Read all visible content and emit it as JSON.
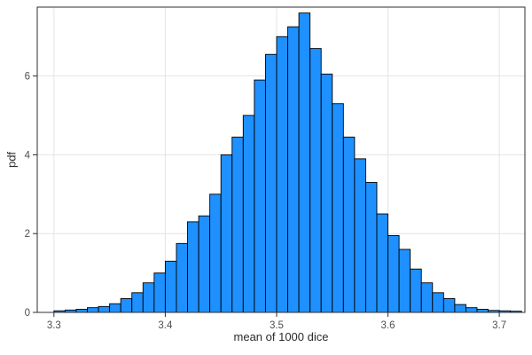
{
  "chart_data": {
    "type": "bar",
    "subtype": "histogram",
    "title": "",
    "xlabel": "mean of 1000 dice",
    "ylabel": "pdf",
    "bin_start": 3.3,
    "bin_width": 0.01,
    "values": [
      0.04,
      0.06,
      0.08,
      0.12,
      0.15,
      0.22,
      0.35,
      0.5,
      0.75,
      1.0,
      1.3,
      1.75,
      2.3,
      2.45,
      3.0,
      4.0,
      4.45,
      5.0,
      5.9,
      6.55,
      7.0,
      7.25,
      7.6,
      6.7,
      6.05,
      5.3,
      4.45,
      3.9,
      3.3,
      2.5,
      1.95,
      1.6,
      1.1,
      0.75,
      0.5,
      0.35,
      0.2,
      0.12,
      0.08,
      0.05,
      0.04,
      0.03
    ],
    "xlim": [
      3.285,
      3.723
    ],
    "ylim": [
      0,
      7.75
    ],
    "xticks": [
      3.3,
      3.4,
      3.5,
      3.6,
      3.7
    ],
    "xtick_labels": [
      "3.3",
      "3.4",
      "3.5",
      "3.6",
      "3.7"
    ],
    "yticks": [
      0,
      2,
      4,
      6
    ],
    "ytick_labels": [
      "0",
      "2",
      "4",
      "6"
    ],
    "grid": true,
    "legend": "none",
    "colors": {
      "bar_fill": "#1E90FF",
      "bar_stroke": "#000000",
      "grid": "#e4e4e4",
      "frame": "#2f2f2f",
      "tick_text": "#4f4f4f",
      "axis_label_text": "#2b2b2b",
      "background": "#ffffff"
    }
  }
}
